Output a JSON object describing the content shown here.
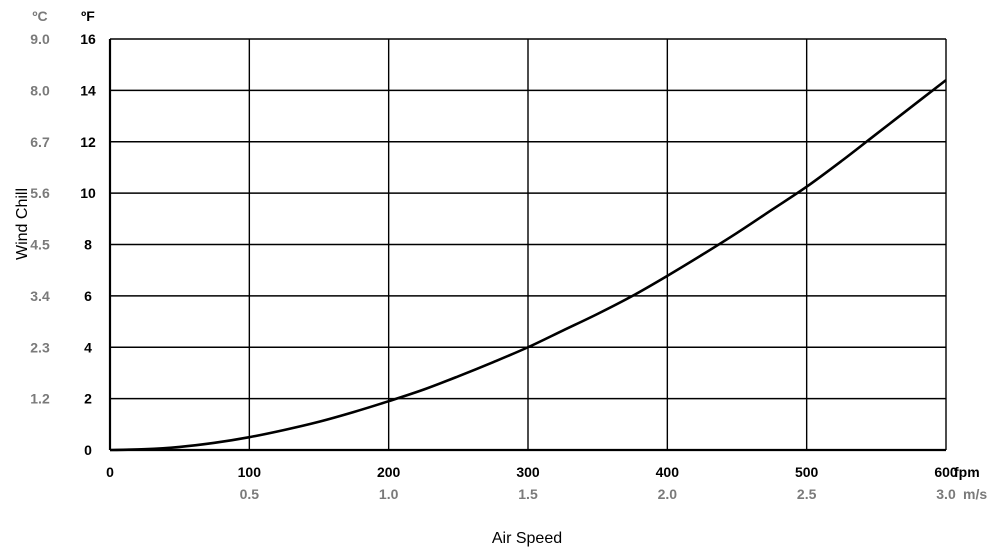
{
  "chart_data": {
    "type": "line",
    "xlabel": "Air Speed",
    "ylabel": "Wind Chill",
    "x_unit": "fpm",
    "x_secondary_unit": "m/s",
    "y_unit": "ºF",
    "y_secondary_unit": "ºC",
    "xlim": [
      0,
      600
    ],
    "ylim": [
      0,
      16
    ],
    "x_ticks": [
      "0",
      "100",
      "200",
      "300",
      "400",
      "500",
      "600"
    ],
    "x_secondary_ticks": [
      "",
      "0.5",
      "1.0",
      "1.5",
      "2.0",
      "2.5",
      "3.0"
    ],
    "y_ticks": [
      "0",
      "2",
      "4",
      "6",
      "8",
      "10",
      "12",
      "14",
      "16"
    ],
    "y_secondary_ticks": [
      "",
      "1.2",
      "2.3",
      "3.4",
      "4.5",
      "5.6",
      "6.7",
      "8.0",
      "9.0"
    ],
    "grid": true,
    "series": [
      {
        "x": [
          0,
          25,
          50,
          75,
          100,
          125,
          150,
          175,
          200,
          225,
          250,
          275,
          300,
          325,
          350,
          375,
          400,
          425,
          450,
          475,
          500,
          525,
          550,
          575,
          600
        ],
        "y": [
          0,
          0.03,
          0.12,
          0.28,
          0.5,
          0.78,
          1.1,
          1.48,
          1.9,
          2.35,
          2.87,
          3.42,
          4.0,
          4.65,
          5.3,
          6.0,
          6.78,
          7.6,
          8.45,
          9.35,
          10.25,
          11.25,
          12.3,
          13.35,
          14.4
        ]
      }
    ]
  },
  "colors": {
    "primary": "#000000",
    "secondary_label": "#7a7a7a"
  }
}
